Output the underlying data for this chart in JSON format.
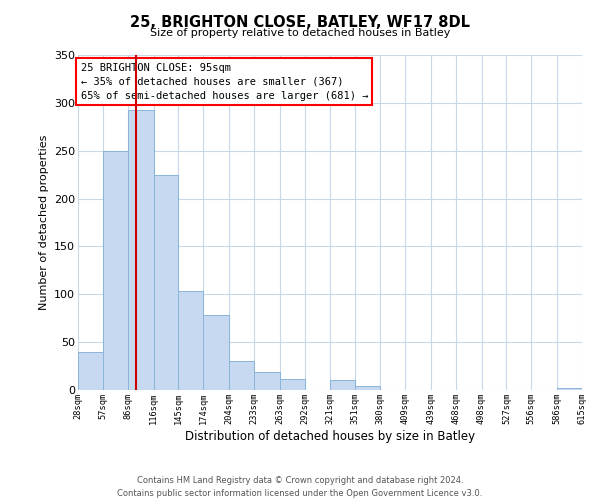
{
  "title": "25, BRIGHTON CLOSE, BATLEY, WF17 8DL",
  "subtitle": "Size of property relative to detached houses in Batley",
  "xlabel": "Distribution of detached houses by size in Batley",
  "ylabel": "Number of detached properties",
  "bar_edges": [
    28,
    57,
    86,
    116,
    145,
    174,
    204,
    233,
    263,
    292,
    321,
    351,
    380,
    409,
    439,
    468,
    498,
    527,
    556,
    586,
    615
  ],
  "bar_heights": [
    40,
    250,
    293,
    225,
    103,
    78,
    30,
    19,
    12,
    0,
    10,
    4,
    0,
    0,
    0,
    0,
    0,
    0,
    0,
    2
  ],
  "bar_color": "#c6d9f0",
  "bar_edgecolor": "#8ab4d8",
  "vline_x": 95,
  "vline_color": "#cc0000",
  "ylim": [
    0,
    350
  ],
  "tick_labels": [
    "28sqm",
    "57sqm",
    "86sqm",
    "116sqm",
    "145sqm",
    "174sqm",
    "204sqm",
    "233sqm",
    "263sqm",
    "292sqm",
    "321sqm",
    "351sqm",
    "380sqm",
    "409sqm",
    "439sqm",
    "468sqm",
    "498sqm",
    "527sqm",
    "556sqm",
    "586sqm",
    "615sqm"
  ],
  "annotation_title": "25 BRIGHTON CLOSE: 95sqm",
  "annotation_line1": "← 35% of detached houses are smaller (367)",
  "annotation_line2": "65% of semi-detached houses are larger (681) →",
  "footer1": "Contains HM Land Registry data © Crown copyright and database right 2024.",
  "footer2": "Contains public sector information licensed under the Open Government Licence v3.0.",
  "background_color": "#ffffff",
  "grid_color": "#c8d8e8"
}
